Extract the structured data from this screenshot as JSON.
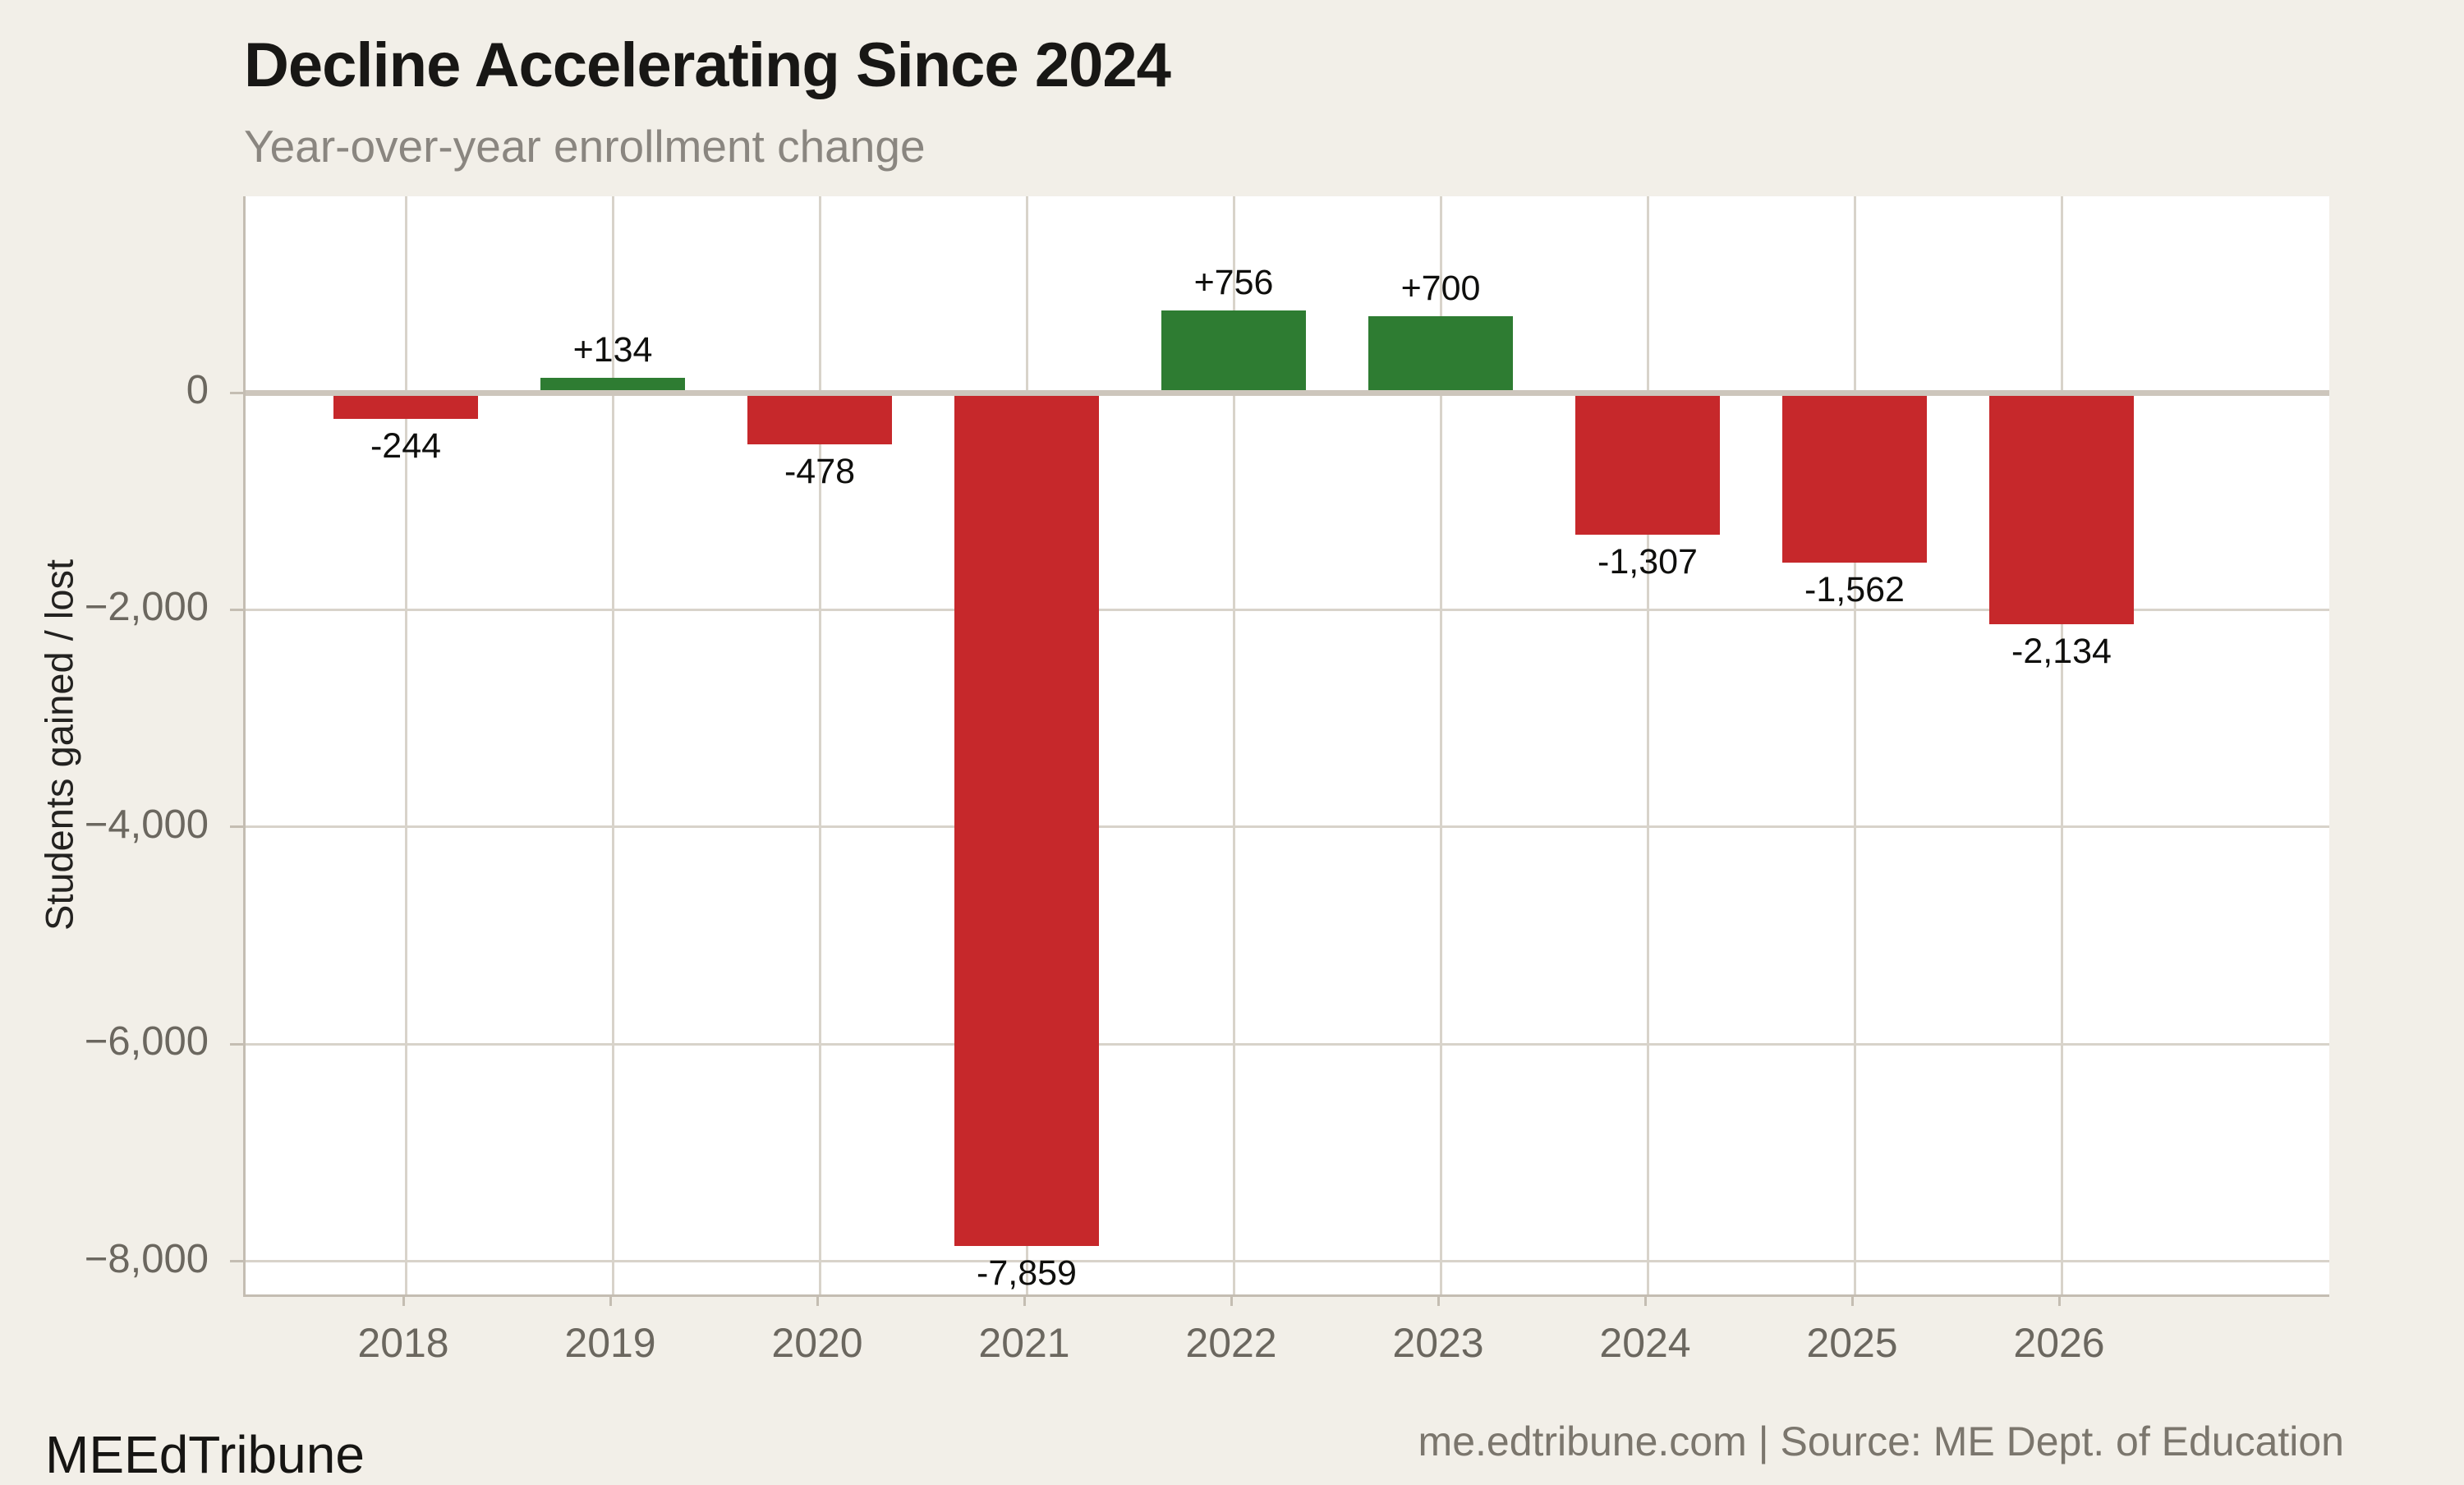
{
  "header": {
    "title": "Decline Accelerating Since 2024",
    "subtitle": "Year-over-year enrollment change"
  },
  "footer": {
    "brand": "MEEdTribune",
    "source": "me.edtribune.com | Source: ME Dept. of Education"
  },
  "chart_data": {
    "type": "bar",
    "title": "Decline Accelerating Since 2024",
    "subtitle": "Year-over-year enrollment change",
    "xlabel": "",
    "ylabel": "Students gained / lost",
    "categories": [
      "2018",
      "2019",
      "2020",
      "2021",
      "2022",
      "2023",
      "2024",
      "2025",
      "2026"
    ],
    "values": [
      -244,
      134,
      -478,
      -7859,
      756,
      700,
      -1307,
      -1562,
      -2134
    ],
    "bar_labels": [
      "-244",
      "+134",
      "-478",
      "-7,859",
      "+756",
      "+700",
      "-1,307",
      "-1,562",
      "-2,134"
    ],
    "yticks": [
      {
        "value": 0,
        "label": "0"
      },
      {
        "value": -2000,
        "label": "−2,000"
      },
      {
        "value": -4000,
        "label": "−4,000"
      },
      {
        "value": -6000,
        "label": "−6,000"
      },
      {
        "value": -8000,
        "label": "−8,000"
      }
    ],
    "ylim": [
      1808,
      -8305
    ],
    "grid": true,
    "legend": false,
    "colors": {
      "positive": "#2e7c32",
      "negative": "#c6282b",
      "gridline": "#d8d3ca",
      "zero_line": "#cdc6bc",
      "axis_spine": "#c4bdb2",
      "tick_text": "#6b675f",
      "plot_background": "#ffffff",
      "page_background": "#f2efe8"
    }
  }
}
